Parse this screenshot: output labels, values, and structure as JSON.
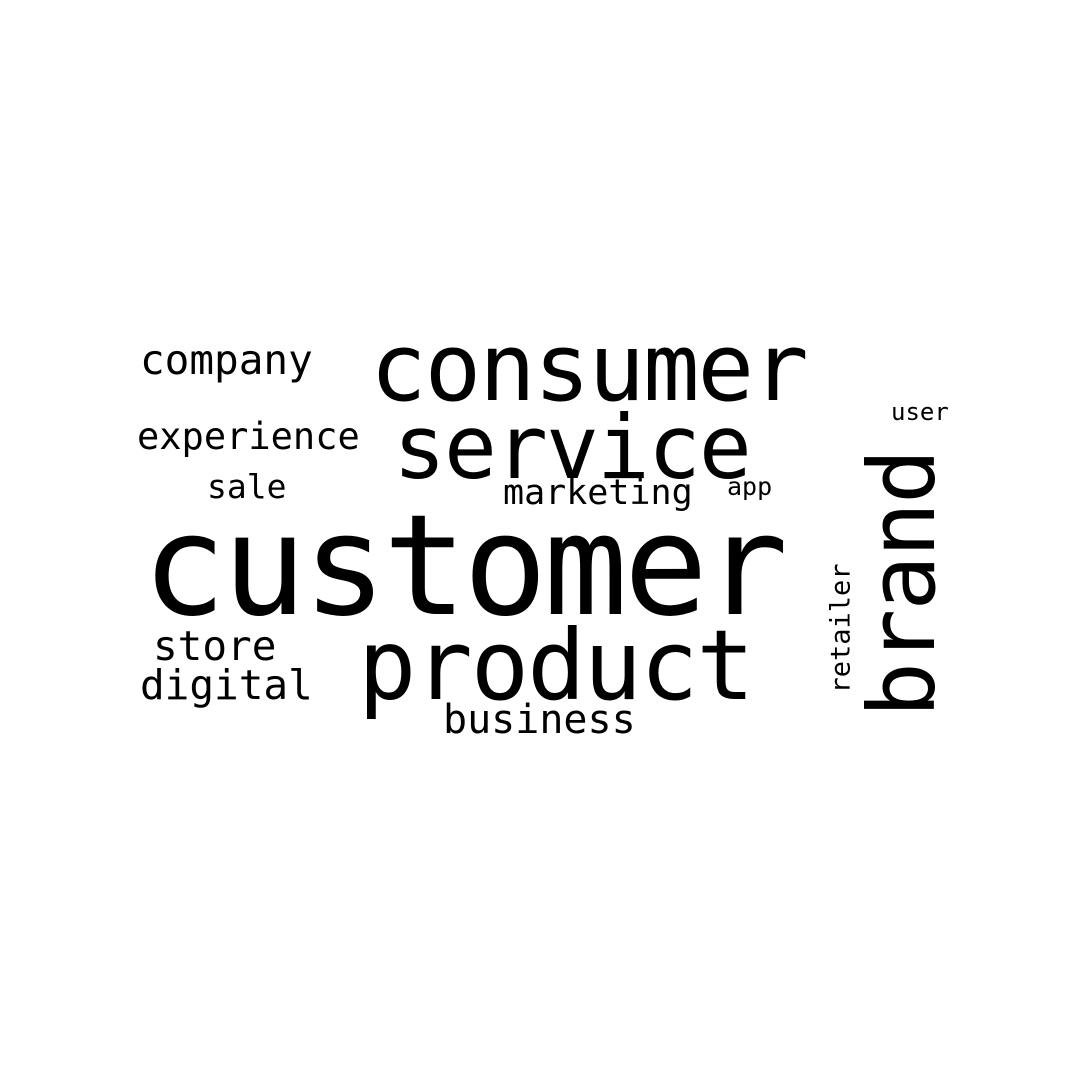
{
  "word_cloud": {
    "background_color": "#ffffff",
    "text_color": "#000000",
    "words": {
      "customer": "customer",
      "consumer": "consumer",
      "service": "service",
      "product": "product",
      "brand": "brand",
      "company": "company",
      "experience": "experience",
      "sale": "sale",
      "marketing": "marketing",
      "app": "app",
      "user": "user",
      "store": "store",
      "digital": "digital",
      "business": "business",
      "retailer": "retailer"
    }
  }
}
